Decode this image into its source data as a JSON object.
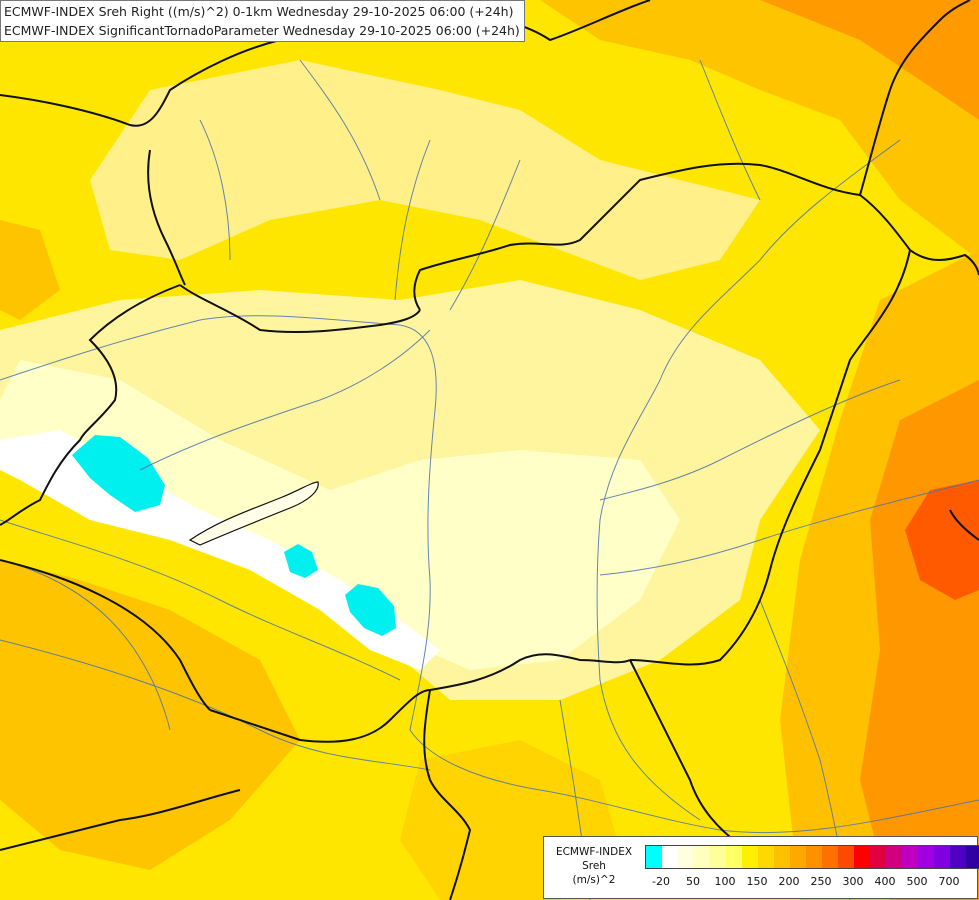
{
  "title": {
    "line1": "ECMWF-INDEX Sreh Right ((m/s)^2) 0-1km Wednesday 29-10-2025 06:00 (+24h)",
    "line2": "ECMWF-INDEX SignificantTornadoParameter Wednesday 29-10-2025 06:00 (+24h)"
  },
  "legend": {
    "line1": "ECMWF-INDEX",
    "line2": "Sreh",
    "line3": "(m/s)^2",
    "colors": [
      "#00ffff",
      "#ffffff",
      "#ffffe0",
      "#ffffc0",
      "#ffff99",
      "#ffff66",
      "#ffef00",
      "#ffd800",
      "#ffc000",
      "#ffa800",
      "#ff9000",
      "#ff7000",
      "#ff4800",
      "#ff0000",
      "#e00040",
      "#d00080",
      "#c000c0",
      "#a000e0",
      "#8000e0",
      "#5000c0",
      "#3000a0",
      "#000080"
    ],
    "ticks": [
      "-20",
      "50",
      "100",
      "150",
      "200",
      "250",
      "300",
      "400",
      "500",
      "700"
    ]
  }
}
